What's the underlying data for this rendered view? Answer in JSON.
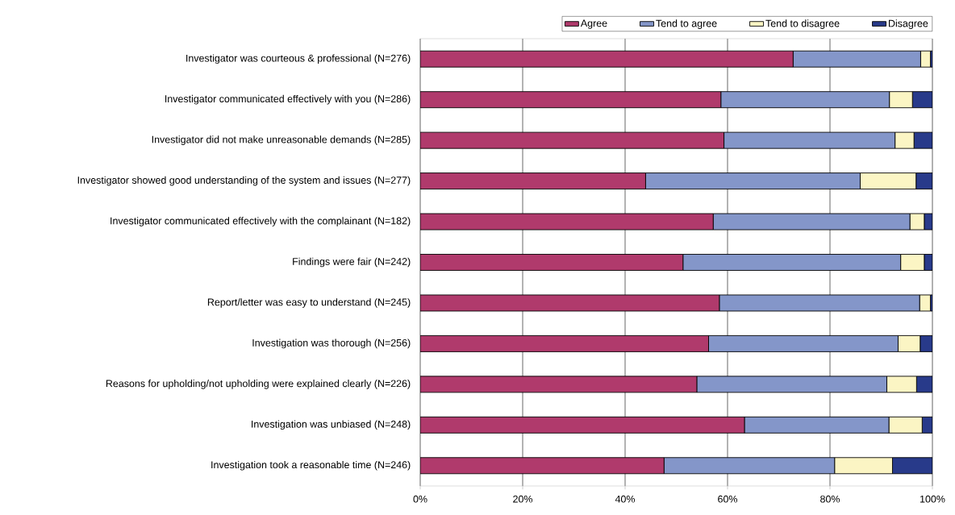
{
  "chart_data": {
    "type": "bar",
    "orientation": "horizontal",
    "stacked": true,
    "categories": [
      "Investigator was courteous & professional (N=276)",
      "Investigator communicated effectively with you (N=286)",
      "Investigator did not make unreasonable demands (N=285)",
      "Investigator showed good understanding of the system and issues (N=277)",
      "Investigator communicated effectively with the complainant (N=182)",
      "Findings were fair (N=242)",
      "Report/letter was easy to understand (N=245)",
      "Investigation was thorough (N=256)",
      "Reasons for upholding/not upholding were explained clearly (N=226)",
      "Investigation was unbiased (N=248)",
      "Investigation took a reasonable time (N=246)"
    ],
    "series": [
      {
        "name": "Agree",
        "color": "#b03a6c",
        "values": [
          72.8,
          58.7,
          59.3,
          44.0,
          57.2,
          51.3,
          58.4,
          56.3,
          54.0,
          63.3,
          47.6
        ]
      },
      {
        "name": "Tend to agree",
        "color": "#8496c9",
        "values": [
          24.9,
          32.9,
          33.4,
          41.9,
          38.4,
          42.5,
          39.1,
          37.0,
          37.1,
          28.2,
          33.3
        ]
      },
      {
        "name": "Tend to disagree",
        "color": "#fbf5c4",
        "values": [
          1.9,
          4.5,
          3.7,
          10.9,
          2.8,
          4.6,
          2.1,
          4.3,
          5.8,
          6.5,
          11.3
        ]
      },
      {
        "name": "Disagree",
        "color": "#283a8a",
        "values": [
          0.4,
          3.9,
          3.6,
          3.2,
          1.6,
          1.6,
          0.4,
          2.4,
          3.1,
          2.0,
          7.8
        ]
      }
    ],
    "xlim": [
      0,
      100
    ],
    "xticks": [
      {
        "value": 0,
        "label": "0%"
      },
      {
        "value": 20,
        "label": "20%"
      },
      {
        "value": 40,
        "label": "40%"
      },
      {
        "value": 60,
        "label": "60%"
      },
      {
        "value": 80,
        "label": "80%"
      },
      {
        "value": 100,
        "label": "100%"
      }
    ],
    "grid": "x",
    "legend": "top"
  }
}
